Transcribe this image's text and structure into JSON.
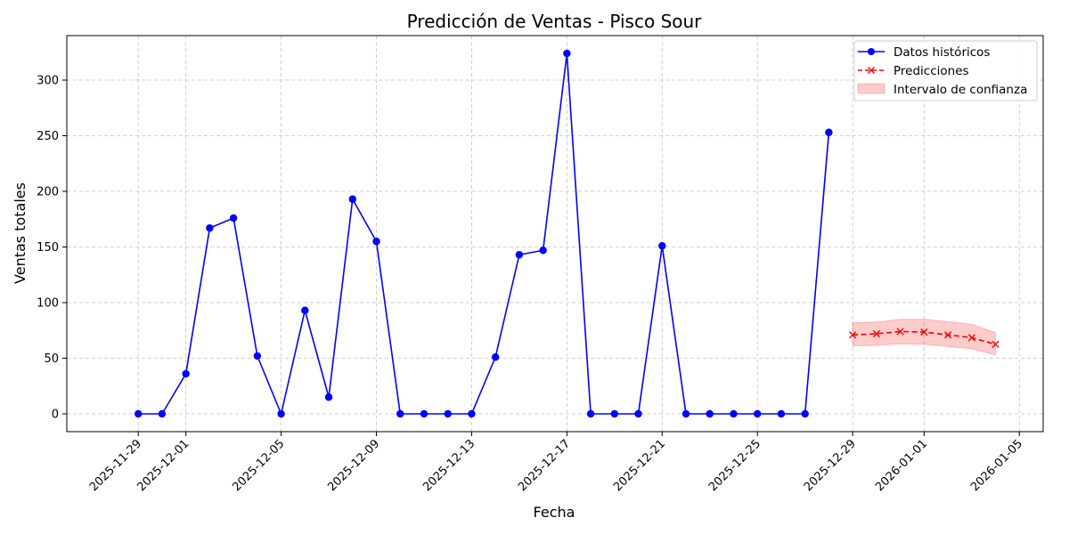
{
  "chart_data": {
    "type": "line",
    "title": "Predicción de Ventas - Pisco Sour",
    "xlabel": "Fecha",
    "ylabel": "Ventas totales",
    "xlim": [
      "2025-11-26",
      "2026-01-06"
    ],
    "ylim": [
      -16,
      340
    ],
    "x_ticks": [
      "2025-11-29",
      "2025-12-01",
      "2025-12-05",
      "2025-12-09",
      "2025-12-13",
      "2025-12-17",
      "2025-12-21",
      "2025-12-25",
      "2025-12-29",
      "2026-01-01",
      "2026-01-05"
    ],
    "y_ticks": [
      0,
      50,
      100,
      150,
      200,
      250,
      300
    ],
    "grid": true,
    "legend_position": "top-right",
    "series": [
      {
        "name": "Datos históricos",
        "color": "#0000ff",
        "marker": "circle",
        "line_style": "solid",
        "x": [
          "2025-11-29",
          "2025-11-30",
          "2025-12-01",
          "2025-12-02",
          "2025-12-03",
          "2025-12-04",
          "2025-12-05",
          "2025-12-06",
          "2025-12-07",
          "2025-12-08",
          "2025-12-09",
          "2025-12-10",
          "2025-12-11",
          "2025-12-12",
          "2025-12-13",
          "2025-12-14",
          "2025-12-15",
          "2025-12-16",
          "2025-12-17",
          "2025-12-18",
          "2025-12-19",
          "2025-12-20",
          "2025-12-21",
          "2025-12-22",
          "2025-12-23",
          "2025-12-24",
          "2025-12-25",
          "2025-12-26",
          "2025-12-27",
          "2025-12-28"
        ],
        "values": [
          0,
          0,
          36,
          167,
          176,
          52,
          0,
          93,
          15,
          193,
          155,
          0,
          0,
          0,
          0,
          51,
          143,
          147,
          324,
          0,
          0,
          0,
          151,
          0,
          0,
          0,
          0,
          0,
          0,
          253
        ]
      },
      {
        "name": "Predicciones",
        "color": "#ff0000",
        "marker": "x",
        "line_style": "dashed",
        "x": [
          "2025-12-29",
          "2025-12-30",
          "2025-12-31",
          "2026-01-01",
          "2026-01-02",
          "2026-01-03",
          "2026-01-04"
        ],
        "values": [
          71,
          72,
          74,
          73.5,
          71,
          68.5,
          62.5
        ]
      }
    ],
    "confidence_interval": {
      "name": "Intervalo de confianza",
      "color": "#ff0000",
      "opacity": 0.2,
      "x": [
        "2025-12-29",
        "2025-12-30",
        "2025-12-31",
        "2026-01-01",
        "2026-01-02",
        "2026-01-03",
        "2026-01-04"
      ],
      "lower": [
        61,
        61.5,
        63,
        62.5,
        60.5,
        58.5,
        53
      ],
      "upper": [
        82,
        82.5,
        85,
        85,
        83,
        80.5,
        73
      ]
    }
  }
}
